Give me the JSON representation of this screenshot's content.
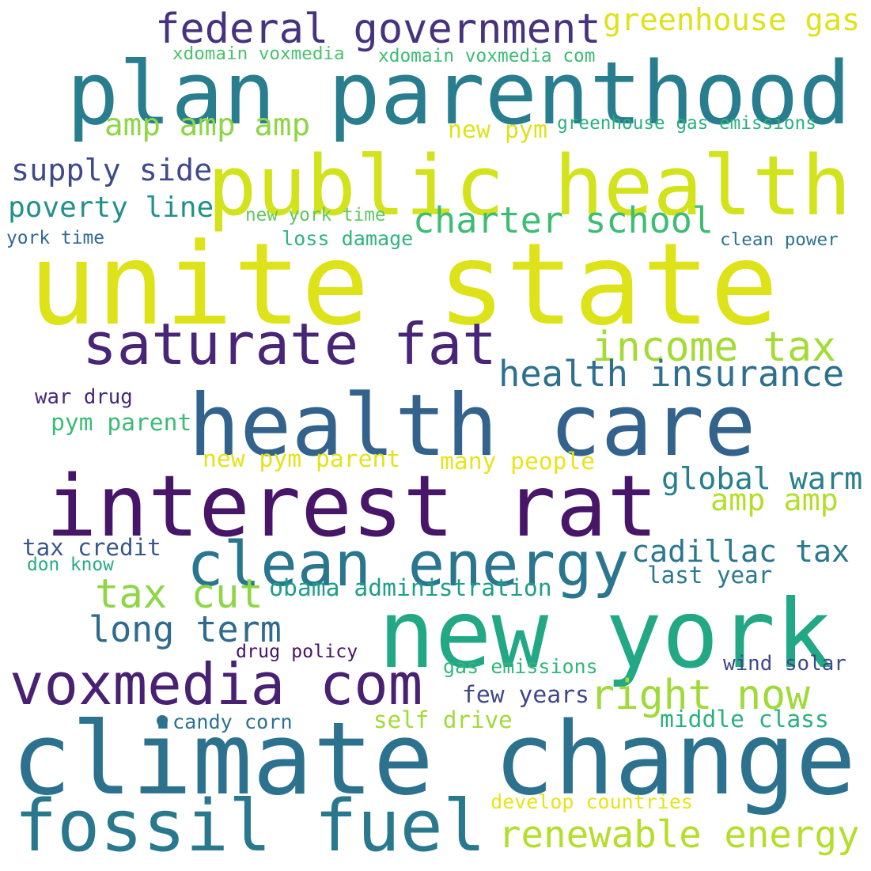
{
  "word_cloud": {
    "words": [
      {
        "text": "unite state",
        "color": "#dde318"
      },
      {
        "text": "climate change",
        "color": "#2c728e"
      },
      {
        "text": "plan parenthood",
        "color": "#287d8e"
      },
      {
        "text": "public health",
        "color": "#d2e21b"
      },
      {
        "text": "health care",
        "color": "#33638d"
      },
      {
        "text": "interest rat",
        "color": "#481668"
      },
      {
        "text": "new york",
        "color": "#22a884"
      },
      {
        "text": "saturate fat",
        "color": "#482576"
      },
      {
        "text": "clean energy",
        "color": "#2a768e"
      },
      {
        "text": "fossil fuel",
        "color": "#2a788e"
      },
      {
        "text": "voxmedia com",
        "color": "#482173"
      },
      {
        "text": "federal government",
        "color": "#46327e"
      },
      {
        "text": "income tax",
        "color": "#a5db36"
      },
      {
        "text": "renewable energy",
        "color": "#b5de2b"
      },
      {
        "text": "right now",
        "color": "#a0da39"
      },
      {
        "text": "health insurance",
        "color": "#2d708e"
      },
      {
        "text": "greenhouse gas",
        "color": "#dde318"
      },
      {
        "text": "charter school",
        "color": "#3dbc74"
      },
      {
        "text": "tax cut",
        "color": "#8ed645"
      },
      {
        "text": "long term",
        "color": "#2f6b8e"
      },
      {
        "text": "global warm",
        "color": "#277f8e"
      },
      {
        "text": "cadillac tax",
        "color": "#2a788e"
      },
      {
        "text": "amp amp amp",
        "color": "#8ed645"
      },
      {
        "text": "supply side",
        "color": "#3e4a89"
      },
      {
        "text": "poverty line",
        "color": "#21918c"
      },
      {
        "text": "amp amp",
        "color": "#b5de2b"
      },
      {
        "text": "obama administration",
        "color": "#1f9f88"
      },
      {
        "text": "last year",
        "color": "#2a788e"
      },
      {
        "text": "pym parent",
        "color": "#3bbb75"
      },
      {
        "text": "many people",
        "color": "#e7e419"
      },
      {
        "text": "new pym parent",
        "color": "#e2e418"
      },
      {
        "text": "tax credit",
        "color": "#39568c"
      },
      {
        "text": "few years",
        "color": "#3f4788"
      },
      {
        "text": "self drive",
        "color": "#a2da37"
      },
      {
        "text": "middle class",
        "color": "#2ab07f"
      },
      {
        "text": "war drug",
        "color": "#482878"
      },
      {
        "text": "new pym",
        "color": "#dde318"
      },
      {
        "text": "greenhouse gas emissions",
        "color": "#2ab07f"
      },
      {
        "text": "xdomain voxmedia",
        "color": "#4ac16d"
      },
      {
        "text": "xdomain voxmedia com",
        "color": "#3dbc74"
      },
      {
        "text": "new york time",
        "color": "#5ec962"
      },
      {
        "text": "loss damage",
        "color": "#2fb47c"
      },
      {
        "text": "york time",
        "color": "#31688e"
      },
      {
        "text": "clean power",
        "color": "#2c728e"
      },
      {
        "text": "gas emissions",
        "color": "#34b679"
      },
      {
        "text": "wind solar",
        "color": "#3e4989"
      },
      {
        "text": "drug policy",
        "color": "#481467"
      },
      {
        "text": "candy corn",
        "color": "#2c728e"
      },
      {
        "text": "develop countries",
        "color": "#e5e419"
      },
      {
        "text": "don know",
        "color": "#25ab82"
      },
      {
        "text": "",
        "color": "#2c728e"
      }
    ]
  }
}
